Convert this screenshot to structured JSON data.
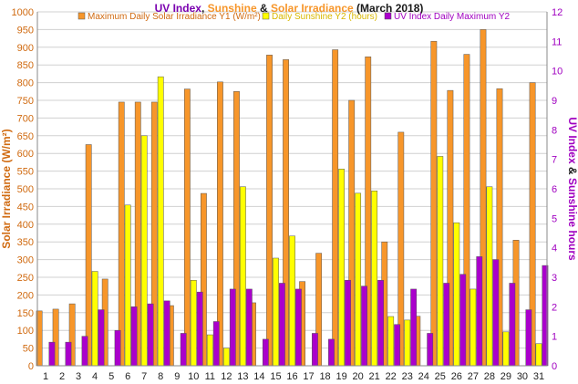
{
  "colors": {
    "irradiance": "#F7962A",
    "sunshine": "#FFFF00",
    "uv": "#AA00CC",
    "title_uv": "#7A00B0",
    "title_sun": "#F7962A",
    "title_dark": "#1A1A1A",
    "left_axis": "#D06A10",
    "right_axis": "#A000C0",
    "grid": "#D0D0D0",
    "bar_stroke": "#555555"
  },
  "title": {
    "part1": "UV Index",
    "sep1": ", ",
    "part2": "Sunshine",
    "sep2": " & ",
    "part3": "Solar Irradiance",
    "part4": " (March 2018)"
  },
  "axes": {
    "left_label": "Solar Irradiance (W/m²)",
    "right_label_part1": "UV Index",
    "right_label_part2": " & ",
    "right_label_part3": "Sunshine hours"
  },
  "chart_data": {
    "type": "bar",
    "categories": [
      "1",
      "2",
      "3",
      "4",
      "5",
      "6",
      "7",
      "8",
      "9",
      "10",
      "11",
      "12",
      "13",
      "14",
      "15",
      "16",
      "17",
      "18",
      "19",
      "20",
      "21",
      "22",
      "23",
      "24",
      "25",
      "26",
      "27",
      "28",
      "29",
      "30",
      "31"
    ],
    "series": [
      {
        "name": "Maximum Daily Solar Irradiance Y1 (W/m²)",
        "axis": "left",
        "values": [
          155,
          160,
          175,
          625,
          245,
          745,
          745,
          745,
          170,
          782,
          487,
          802,
          775,
          178,
          878,
          865,
          238,
          318,
          893,
          750,
          873,
          350,
          660,
          140,
          917,
          778,
          880,
          950,
          783,
          355,
          800
        ]
      },
      {
        "name": "Daily Sunshine Y2 (hours)",
        "axis": "right",
        "values": [
          0,
          0,
          0,
          3.2,
          0,
          5.45,
          7.8,
          9.8,
          0,
          2.9,
          1.05,
          0.6,
          6.07,
          0,
          3.65,
          4.4,
          0,
          0,
          6.67,
          5.85,
          5.93,
          1.67,
          1.55,
          0,
          7.1,
          4.85,
          2.6,
          6.07,
          1.15,
          0,
          0.75
        ]
      },
      {
        "name": "UV Index Daily Maximum Y2",
        "axis": "right",
        "values": [
          0.8,
          0.8,
          1.0,
          1.9,
          1.2,
          2.0,
          2.1,
          2.2,
          1.1,
          2.5,
          1.5,
          2.6,
          2.6,
          0.9,
          2.8,
          2.6,
          1.1,
          0.9,
          2.9,
          2.7,
          2.9,
          1.4,
          2.6,
          1.1,
          2.8,
          3.1,
          3.7,
          3.6,
          2.8,
          1.9,
          3.4
        ]
      }
    ],
    "y_left": {
      "min": 0,
      "max": 1000,
      "step": 50
    },
    "y_right": {
      "min": 0,
      "max": 12,
      "step": 1
    },
    "grid": true,
    "legend": "top"
  }
}
